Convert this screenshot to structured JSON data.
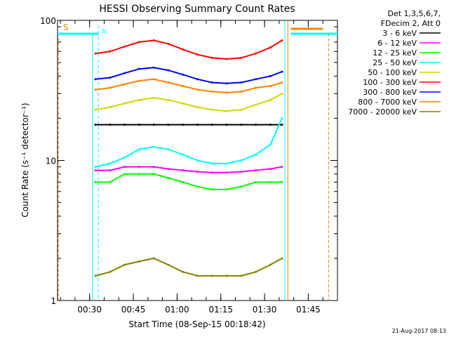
{
  "chart_data": {
    "type": "line",
    "title": "HESSI Observing Summary Count Rates",
    "xlabel": "Start Time (08-Sep-15 00:18:42)",
    "ylabel": "Count Rate (s⁻¹ detector⁻¹)",
    "y_scale": "log",
    "ylim": [
      1,
      100
    ],
    "xlim": [
      "00:19",
      "01:55"
    ],
    "x_ticks": [
      "00:30",
      "00:45",
      "01:00",
      "01:15",
      "01:30",
      "01:45"
    ],
    "y_ticks": [
      1,
      10,
      100
    ],
    "y_tick_labels": [
      "1",
      "10",
      "100"
    ],
    "legend_header": [
      "Det 1,3,5,6,7,",
      "FDecim 2, Att 0"
    ],
    "legend_position": "right",
    "timestamp": "21-Aug-2017 08:13",
    "x": [
      "00:32",
      "00:37",
      "00:42",
      "00:47",
      "00:52",
      "00:57",
      "01:02",
      "01:07",
      "01:12",
      "01:17",
      "01:22",
      "01:27",
      "01:32",
      "01:36"
    ],
    "series": [
      {
        "name": "3 - 6 keV",
        "color": "#000000",
        "values": [
          18,
          18,
          18,
          18,
          18,
          18,
          18,
          18,
          18,
          18,
          18,
          18,
          18,
          18
        ]
      },
      {
        "name": "6 - 12 keV",
        "color": "#ff00ff",
        "values": [
          8.5,
          8.5,
          9,
          9,
          9,
          8.7,
          8.5,
          8.3,
          8.2,
          8.2,
          8.3,
          8.5,
          8.7,
          9
        ]
      },
      {
        "name": "12 - 25 keV",
        "color": "#00ff00",
        "values": [
          7,
          7,
          8,
          8,
          8,
          7.5,
          7,
          6.5,
          6.2,
          6.2,
          6.5,
          7,
          7,
          7
        ]
      },
      {
        "name": "25 - 50 keV",
        "color": "#00ffff",
        "values": [
          9,
          9.5,
          10.5,
          12,
          12.5,
          12,
          11,
          10,
          9.5,
          9.5,
          10,
          11,
          13,
          20
        ]
      },
      {
        "name": "50 - 100 keV",
        "color": "#d4d400",
        "values": [
          23,
          24,
          25.5,
          27,
          28,
          27,
          25.5,
          24,
          23,
          22.5,
          23,
          25,
          27,
          30
        ]
      },
      {
        "name": "100 - 300 keV",
        "color": "#ff0000",
        "values": [
          58,
          60,
          65,
          70,
          72,
          68,
          62,
          57,
          54,
          53,
          54,
          58,
          64,
          72
        ]
      },
      {
        "name": "300 - 800 keV",
        "color": "#0000ff",
        "values": [
          38,
          39,
          42,
          45,
          46,
          44,
          41,
          38,
          36,
          35.5,
          36,
          38,
          40,
          43
        ]
      },
      {
        "name": "800 - 7000 keV",
        "color": "#ff8000",
        "values": [
          32,
          33,
          35,
          37,
          38,
          36,
          34,
          32,
          31,
          30.5,
          31,
          33,
          34,
          36
        ]
      },
      {
        "name": "7000 - 20000 keV",
        "color": "#808000",
        "values": [
          1.5,
          1.6,
          1.8,
          1.9,
          2,
          1.8,
          1.6,
          1.5,
          1.5,
          1.5,
          1.5,
          1.6,
          1.8,
          2
        ]
      }
    ],
    "annotations": [
      {
        "text": "S",
        "color": "#ff8000"
      },
      {
        "text": "N",
        "color": "#00ffff"
      }
    ]
  }
}
